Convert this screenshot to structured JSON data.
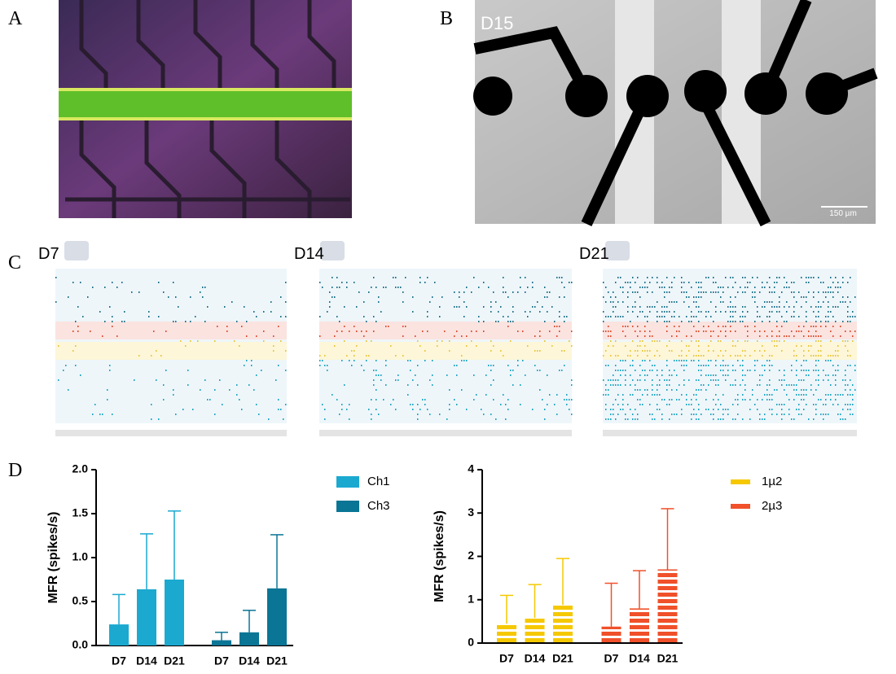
{
  "panels": {
    "a": "A",
    "b": "B",
    "c": "C",
    "d": "D"
  },
  "image_b": {
    "label": "D15",
    "scale_bar": "150 µm"
  },
  "raster_labels": [
    "D7",
    "D14",
    "D21"
  ],
  "chart_data": [
    {
      "type": "bar",
      "ylabel": "MFR (spikes/s)",
      "categories": [
        "D7",
        "D14",
        "D21",
        "D7",
        "D14",
        "D21"
      ],
      "ylim": [
        0,
        2
      ],
      "yticks": [
        {
          "value": 0,
          "label": "0.0"
        },
        0.5,
        {
          "value": 1,
          "label": "1.0"
        },
        1.5,
        {
          "value": 2,
          "label": "2.0"
        }
      ],
      "series": [
        {
          "name": "Ch1",
          "color": "#1ba9d0",
          "values": [
            0.24,
            0.64,
            0.75,
            null,
            null,
            null
          ],
          "errors": [
            0.34,
            0.63,
            0.78,
            null,
            null,
            null
          ]
        },
        {
          "name": "Ch3",
          "color": "#0a7595",
          "values": [
            null,
            null,
            null,
            0.06,
            0.15,
            0.65
          ],
          "errors": [
            null,
            null,
            null,
            0.09,
            0.25,
            0.61
          ]
        }
      ]
    },
    {
      "type": "bar",
      "ylabel": "MFR (spikes/s)",
      "categories": [
        "D7",
        "D14",
        "D21",
        "D7",
        "D14",
        "D21"
      ],
      "ylim": [
        0,
        4
      ],
      "yticks": [
        0,
        1,
        2,
        3,
        4
      ],
      "series": [
        {
          "name": "1µ2",
          "color": "#f5c800",
          "hatch": "horizontal",
          "values": [
            0.45,
            0.58,
            0.88,
            null,
            null,
            null
          ],
          "errors": [
            0.65,
            0.77,
            1.07,
            null,
            null,
            null
          ]
        },
        {
          "name": "2µ3",
          "color": "#f0502a",
          "hatch": "horizontal",
          "values": [
            null,
            null,
            null,
            0.38,
            0.8,
            1.7
          ],
          "errors": [
            null,
            null,
            null,
            1.0,
            0.87,
            1.4
          ]
        }
      ]
    }
  ]
}
